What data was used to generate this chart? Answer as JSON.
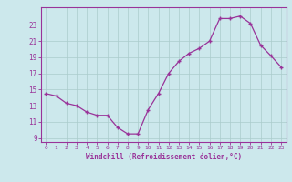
{
  "x_data": [
    0,
    1,
    2,
    3,
    4,
    5,
    6,
    7,
    8,
    9,
    10,
    11,
    12,
    13,
    14,
    15,
    16,
    17,
    18,
    19,
    20,
    21,
    22,
    23
  ],
  "y_data": [
    14.5,
    14.2,
    13.3,
    13.0,
    12.2,
    11.8,
    11.8,
    10.3,
    9.5,
    9.5,
    12.5,
    14.5,
    17.0,
    18.5,
    19.5,
    20.1,
    21.0,
    23.8,
    23.8,
    24.1,
    23.2,
    20.5,
    19.2,
    17.8
  ],
  "line_color": "#993399",
  "bg_color": "#cce8ec",
  "grid_color": "#aacccc",
  "xlabel": "Windchill (Refroidissement éolien,°C)",
  "ytick_vals": [
    9,
    11,
    13,
    15,
    17,
    19,
    21,
    23
  ],
  "xtick_labels": [
    "0",
    "1",
    "2",
    "3",
    "4",
    "5",
    "6",
    "7",
    "8",
    "9",
    "10",
    "11",
    "12",
    "13",
    "14",
    "15",
    "16",
    "17",
    "18",
    "19",
    "20",
    "21",
    "22",
    "23"
  ],
  "xlim": [
    -0.5,
    23.5
  ],
  "ylim": [
    8.5,
    25.2
  ],
  "font_color": "#993399"
}
